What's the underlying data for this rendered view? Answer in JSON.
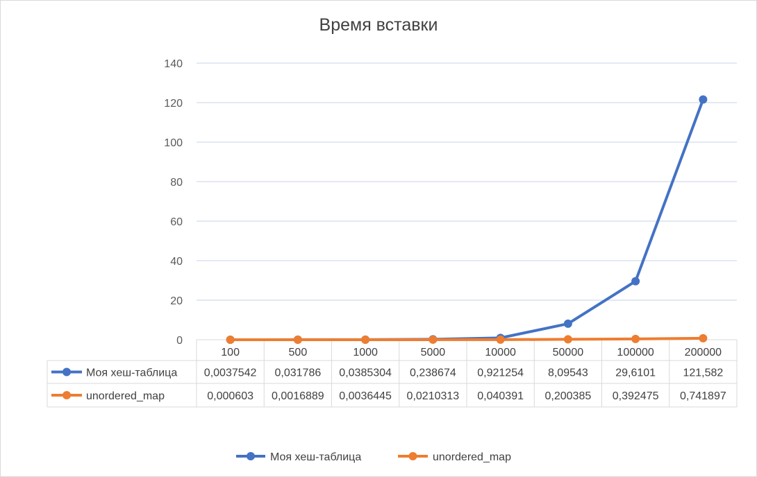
{
  "chart_data": {
    "type": "line",
    "title": "Время вставки",
    "categories": [
      "100",
      "500",
      "1000",
      "5000",
      "10000",
      "50000",
      "100000",
      "200000"
    ],
    "ylim": [
      0,
      140
    ],
    "yticks": [
      0,
      20,
      40,
      60,
      80,
      100,
      120,
      140
    ],
    "grid": true,
    "legend": "bottom",
    "data_table": true,
    "series": [
      {
        "name": "Моя хеш-таблица",
        "color": "#4472c4",
        "values": [
          0.0037542,
          0.031786,
          0.0385304,
          0.238674,
          0.921254,
          8.09543,
          29.6101,
          121.582
        ],
        "labels": [
          "0,0037542",
          "0,031786",
          "0,0385304",
          "0,238674",
          "0,921254",
          "8,09543",
          "29,6101",
          "121,582"
        ]
      },
      {
        "name": "unordered_map",
        "color": "#ed7d31",
        "values": [
          0.000603,
          0.0016889,
          0.0036445,
          0.0210313,
          0.040391,
          0.200385,
          0.392475,
          0.741897
        ],
        "labels": [
          "0,000603",
          "0,0016889",
          "0,0036445",
          "0,0210313",
          "0,040391",
          "0,200385",
          "0,392475",
          "0,741897"
        ]
      }
    ]
  }
}
